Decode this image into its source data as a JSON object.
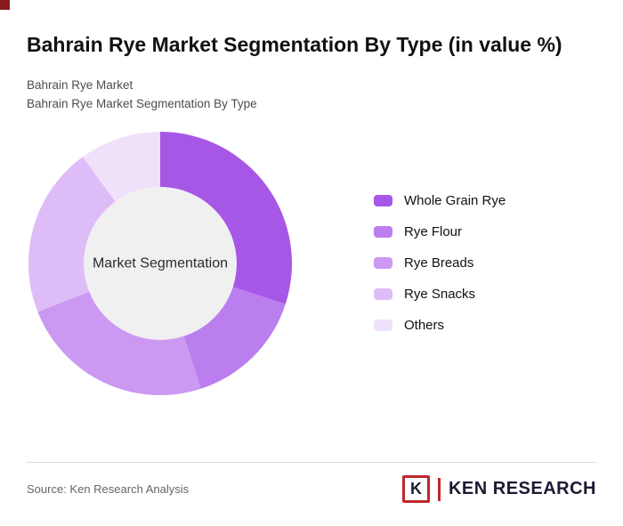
{
  "page": {
    "title": "Bahrain Rye Market Segmentation By Type (in value %)",
    "subtitle_line1": "Bahrain Rye Market",
    "subtitle_line2": "Bahrain Rye Market Segmentation By Type"
  },
  "chart_data": {
    "type": "pie",
    "style": "donut",
    "title": "Bahrain Rye Market Segmentation By Type (in value %)",
    "center_label": "Market Segmentation",
    "categories": [
      "Whole Grain Rye",
      "Rye Flour",
      "Rye Breads",
      "Rye Snacks",
      "Others"
    ],
    "values": [
      30,
      15,
      24,
      21,
      10
    ],
    "colors": [
      "#a757e6",
      "#bb7eee",
      "#cb98f2",
      "#debcf7",
      "#f0e1fb"
    ],
    "hole_color": "#f0f0f0",
    "inner_radius_ratio": 0.58,
    "start_angle_deg": 0,
    "direction": "clockwise",
    "legend_position": "right",
    "data_labels_shown": false
  },
  "footer": {
    "source": "Source: Ken Research Analysis",
    "logo_letter": "K",
    "logo_text": "KEN RESEARCH"
  },
  "accent": {
    "brand_red": "#c0272d",
    "corner_square": "#8a1c1c"
  }
}
